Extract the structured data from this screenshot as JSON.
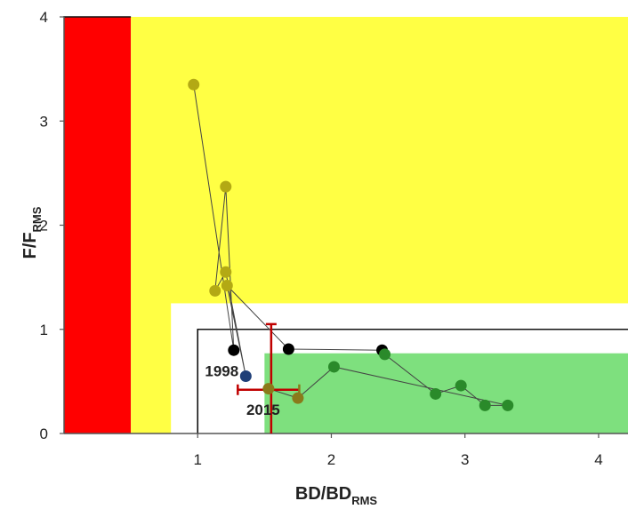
{
  "chart_data": {
    "type": "scatter",
    "title": "",
    "xlabel": {
      "main": "BD/BD",
      "sub": "RMS"
    },
    "ylabel": {
      "main": "F/F",
      "sub": "RMS"
    },
    "xlim": [
      0,
      4.22
    ],
    "ylim": [
      0,
      4
    ],
    "x_ticks": [
      1,
      2,
      3,
      4
    ],
    "y_ticks": [
      0,
      1,
      2,
      3,
      4
    ],
    "colors": {
      "red_zone": "#ff0000",
      "yellow_zone": "#ffff44",
      "green_zone": "#7ee07e",
      "line": "#444444",
      "reference_line": "#111111",
      "early_points": "#b3a914",
      "black_points": "#000000",
      "green_points": "#2a8a2a",
      "blue_point": "#1f3f78",
      "last_point": "#8a7a1a",
      "error_bars": "#c00000",
      "error_bars_olive": "#8a7a1a"
    },
    "zones": [
      {
        "name": "red",
        "x": [
          0,
          0.5
        ],
        "y": [
          0,
          4
        ]
      },
      {
        "name": "yellow",
        "x": [
          0.5,
          4.22
        ],
        "y": [
          0,
          4
        ]
      },
      {
        "name": "white",
        "x": [
          0.8,
          4.22
        ],
        "y": [
          0,
          1.25
        ]
      },
      {
        "name": "green",
        "x": [
          1.5,
          4.22
        ],
        "y": [
          0,
          0.77
        ]
      }
    ],
    "reference_lines": [
      {
        "points": [
          [
            1,
            0
          ],
          [
            1,
            1
          ],
          [
            4.22,
            1
          ]
        ]
      },
      {
        "points": [
          [
            0,
            4
          ],
          [
            0.5,
            4
          ]
        ]
      }
    ],
    "series": [
      {
        "points": [
          {
            "x": 0.97,
            "y": 3.35,
            "group": "early"
          },
          {
            "x": 1.27,
            "y": 0.8,
            "group": "black"
          },
          {
            "x": 1.21,
            "y": 2.37,
            "group": "early"
          },
          {
            "x": 1.13,
            "y": 1.37,
            "group": "early"
          },
          {
            "x": 1.21,
            "y": 1.55,
            "group": "early"
          },
          {
            "x": 1.36,
            "y": 0.55,
            "group": "blue"
          },
          {
            "x": 1.22,
            "y": 1.42,
            "group": "early"
          },
          {
            "x": 1.68,
            "y": 0.81,
            "group": "black"
          },
          {
            "x": 2.38,
            "y": 0.8,
            "group": "black"
          },
          {
            "x": 2.4,
            "y": 0.76,
            "group": "green"
          },
          {
            "x": 2.78,
            "y": 0.38,
            "group": "green"
          },
          {
            "x": 2.97,
            "y": 0.46,
            "group": "green"
          },
          {
            "x": 3.15,
            "y": 0.27,
            "group": "green"
          },
          {
            "x": 3.32,
            "y": 0.27,
            "group": "green"
          },
          {
            "x": 2.02,
            "y": 0.64,
            "group": "green"
          },
          {
            "x": 1.75,
            "y": 0.34,
            "group": "last"
          },
          {
            "x": 1.53,
            "y": 0.43,
            "group": "last"
          }
        ]
      }
    ],
    "error_bars": [
      {
        "x": 1.55,
        "y": 0.42,
        "xerr": [
          1.3,
          1.76
        ],
        "yerr": [
          0,
          1.05
        ],
        "color": "error_bars"
      }
    ],
    "annotations": [
      {
        "text": "1998",
        "x": 1.18,
        "y": 0.55
      },
      {
        "text": "2015",
        "x": 1.49,
        "y": 0.18
      }
    ],
    "grid": false,
    "legend": "none"
  }
}
